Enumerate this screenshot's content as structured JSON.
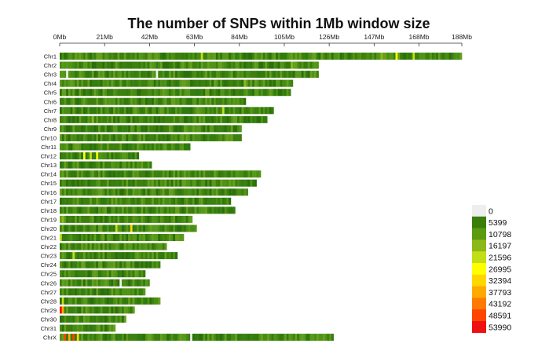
{
  "chart_data": {
    "type": "heatmap",
    "title": "The number of SNPs within 1Mb window size",
    "xlabel": "",
    "ylabel": "",
    "x_unit": "Mb",
    "xlim": [
      0,
      188
    ],
    "x_ticks": [
      {
        "value": 0,
        "label": "0Mb"
      },
      {
        "value": 21,
        "label": "21Mb"
      },
      {
        "value": 42,
        "label": "42Mb"
      },
      {
        "value": 63,
        "label": "63Mb"
      },
      {
        "value": 84,
        "label": "84Mb"
      },
      {
        "value": 105,
        "label": "105Mb"
      },
      {
        "value": 126,
        "label": "126Mb"
      },
      {
        "value": 147,
        "label": "147Mb"
      },
      {
        "value": 168,
        "label": "168Mb"
      },
      {
        "value": 188,
        "label": "188Mb"
      }
    ],
    "legend_position": "bottom-right",
    "legend": [
      {
        "label": "0",
        "color": "#eeeeee"
      },
      {
        "label": "5399",
        "color": "#3a7d0b"
      },
      {
        "label": "10798",
        "color": "#5c9a0f"
      },
      {
        "label": "16197",
        "color": "#8cb81a"
      },
      {
        "label": "21596",
        "color": "#c2de17"
      },
      {
        "label": "26995",
        "color": "#ffff00"
      },
      {
        "label": "32394",
        "color": "#ffd700"
      },
      {
        "label": "37793",
        "color": "#ffaa00"
      },
      {
        "label": "43192",
        "color": "#ff7a00"
      },
      {
        "label": "48591",
        "color": "#ff4400"
      },
      {
        "label": "53990",
        "color": "#ee1111"
      }
    ],
    "chromosomes": [
      {
        "name": "Chr1",
        "length": 188,
        "hotspots": [
          {
            "pos": 66,
            "level": 4
          },
          {
            "pos": 150,
            "level": 3
          },
          {
            "pos": 157,
            "level": 5
          },
          {
            "pos": 165,
            "level": 4
          }
        ]
      },
      {
        "name": "Chr2",
        "length": 121,
        "hotspots": [
          {
            "pos": 108,
            "level": 3
          }
        ]
      },
      {
        "name": "Chr3",
        "length": 121,
        "hotspots": [
          {
            "pos": 3,
            "level": 0
          },
          {
            "pos": 45,
            "level": 0
          }
        ]
      },
      {
        "name": "Chr4",
        "length": 109,
        "hotspots": [
          {
            "pos": 86,
            "level": 3
          }
        ]
      },
      {
        "name": "Chr5",
        "length": 108,
        "hotspots": []
      },
      {
        "name": "Chr6",
        "length": 87,
        "hotspots": []
      },
      {
        "name": "Chr7",
        "length": 100,
        "hotspots": [
          {
            "pos": 76,
            "level": 4
          }
        ]
      },
      {
        "name": "Chr8",
        "length": 97,
        "hotspots": [
          {
            "pos": 15,
            "level": 3
          }
        ]
      },
      {
        "name": "Chr9",
        "length": 85,
        "hotspots": []
      },
      {
        "name": "Chr10",
        "length": 85,
        "hotspots": []
      },
      {
        "name": "Chr11",
        "length": 61,
        "hotspots": []
      },
      {
        "name": "Chr12",
        "length": 37,
        "hotspots": [
          {
            "pos": 11,
            "level": 5
          },
          {
            "pos": 14,
            "level": 4
          },
          {
            "pos": 17,
            "level": 5
          }
        ]
      },
      {
        "name": "Chr13",
        "length": 43,
        "hotspots": []
      },
      {
        "name": "Chr14",
        "length": 94,
        "hotspots": []
      },
      {
        "name": "Chr15",
        "length": 92,
        "hotspots": []
      },
      {
        "name": "Chr16",
        "length": 88,
        "hotspots": []
      },
      {
        "name": "Chr17",
        "length": 80,
        "hotspots": []
      },
      {
        "name": "Chr18",
        "length": 82,
        "hotspots": []
      },
      {
        "name": "Chr19",
        "length": 62,
        "hotspots": [
          {
            "pos": 1,
            "level": 3
          }
        ]
      },
      {
        "name": "Chr20",
        "length": 64,
        "hotspots": [
          {
            "pos": 26,
            "level": 4
          },
          {
            "pos": 33,
            "level": 6
          }
        ]
      },
      {
        "name": "Chr21",
        "length": 58,
        "hotspots": [
          {
            "pos": 0,
            "level": 4
          }
        ]
      },
      {
        "name": "Chr22",
        "length": 50,
        "hotspots": []
      },
      {
        "name": "Chr23",
        "length": 55,
        "hotspots": [
          {
            "pos": 6,
            "level": 4
          }
        ]
      },
      {
        "name": "Chr24",
        "length": 47,
        "hotspots": []
      },
      {
        "name": "Chr25",
        "length": 40,
        "hotspots": []
      },
      {
        "name": "Chr26",
        "length": 42,
        "hotspots": [
          {
            "pos": 28,
            "level": 0
          }
        ]
      },
      {
        "name": "Chr27",
        "length": 40,
        "hotspots": []
      },
      {
        "name": "Chr28",
        "length": 47,
        "hotspots": [
          {
            "pos": 1,
            "level": 4
          }
        ]
      },
      {
        "name": "Chr29",
        "length": 35,
        "hotspots": [
          {
            "pos": 0,
            "level": 10
          },
          {
            "pos": 1,
            "level": 7
          }
        ]
      },
      {
        "name": "Chr30",
        "length": 31,
        "hotspots": []
      },
      {
        "name": "Chr31",
        "length": 26,
        "hotspots": []
      },
      {
        "name": "ChrX",
        "length": 128,
        "hotspots": [
          {
            "pos": 2,
            "level": 9
          },
          {
            "pos": 4,
            "level": 7
          },
          {
            "pos": 6,
            "level": 9
          },
          {
            "pos": 8,
            "level": 6
          },
          {
            "pos": 61,
            "level": 0
          }
        ]
      }
    ]
  }
}
